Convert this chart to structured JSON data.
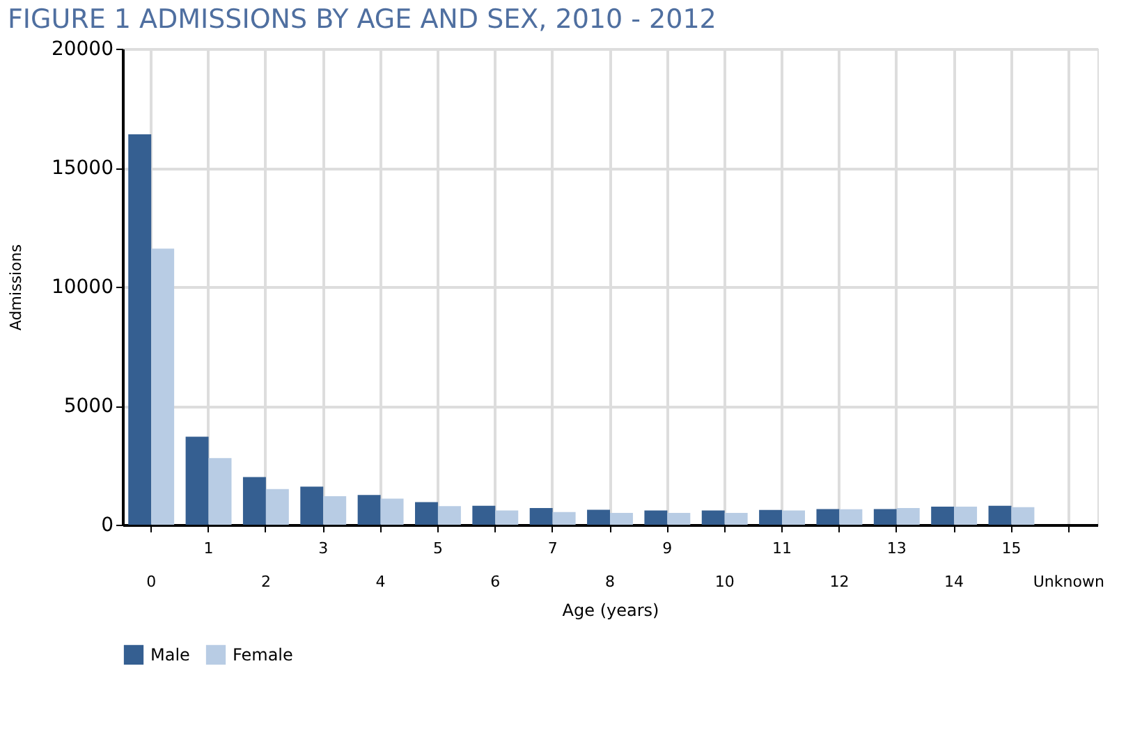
{
  "chart_data": {
    "type": "bar",
    "title": "FIGURE 1 ADMISSIONS BY AGE AND SEX, 2010 - 2012",
    "xlabel": "Age (years)",
    "ylabel": "Admissions",
    "categories": [
      "0",
      "1",
      "2",
      "3",
      "4",
      "5",
      "6",
      "7",
      "8",
      "9",
      "10",
      "11",
      "12",
      "13",
      "14",
      "15",
      "Unknown"
    ],
    "series": [
      {
        "name": "Male",
        "color": "#355f91",
        "values": [
          16400,
          3700,
          2000,
          1600,
          1250,
          950,
          800,
          700,
          630,
          600,
          600,
          620,
          660,
          660,
          760,
          800,
          0
        ]
      },
      {
        "name": "Female",
        "color": "#b8cce4",
        "values": [
          11600,
          2800,
          1500,
          1200,
          1100,
          780,
          600,
          530,
          500,
          500,
          500,
          600,
          650,
          700,
          760,
          740,
          0
        ]
      }
    ],
    "ylim": [
      0,
      20000
    ],
    "yticks": [
      0,
      5000,
      10000,
      15000,
      20000
    ],
    "grid": true,
    "legend": "bottom"
  }
}
